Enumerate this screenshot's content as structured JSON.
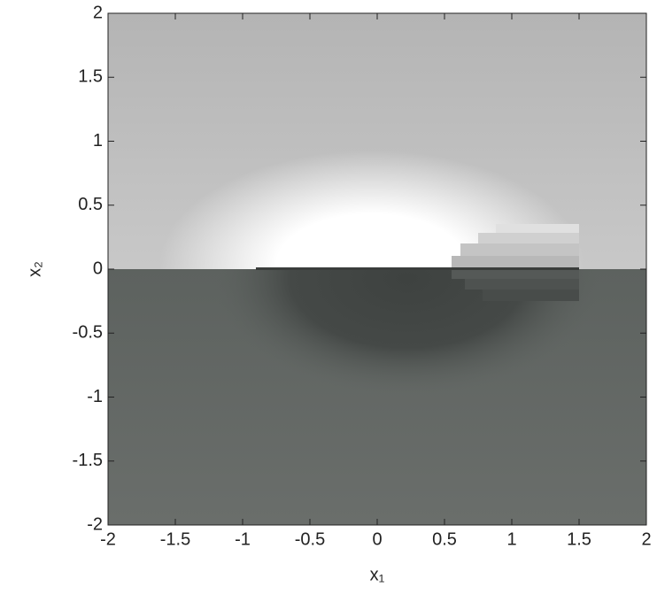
{
  "chart_data": {
    "type": "image",
    "xlabel": "x₁",
    "ylabel": "x₂",
    "xlim": [
      -2,
      2
    ],
    "ylim": [
      -2,
      2
    ],
    "xticks": [
      -2,
      -1.5,
      -1,
      -0.5,
      0,
      0.5,
      1,
      1.5,
      2
    ],
    "yticks": [
      -2,
      -1.5,
      -1,
      -0.5,
      0,
      0.5,
      1,
      1.5,
      2
    ]
  }
}
